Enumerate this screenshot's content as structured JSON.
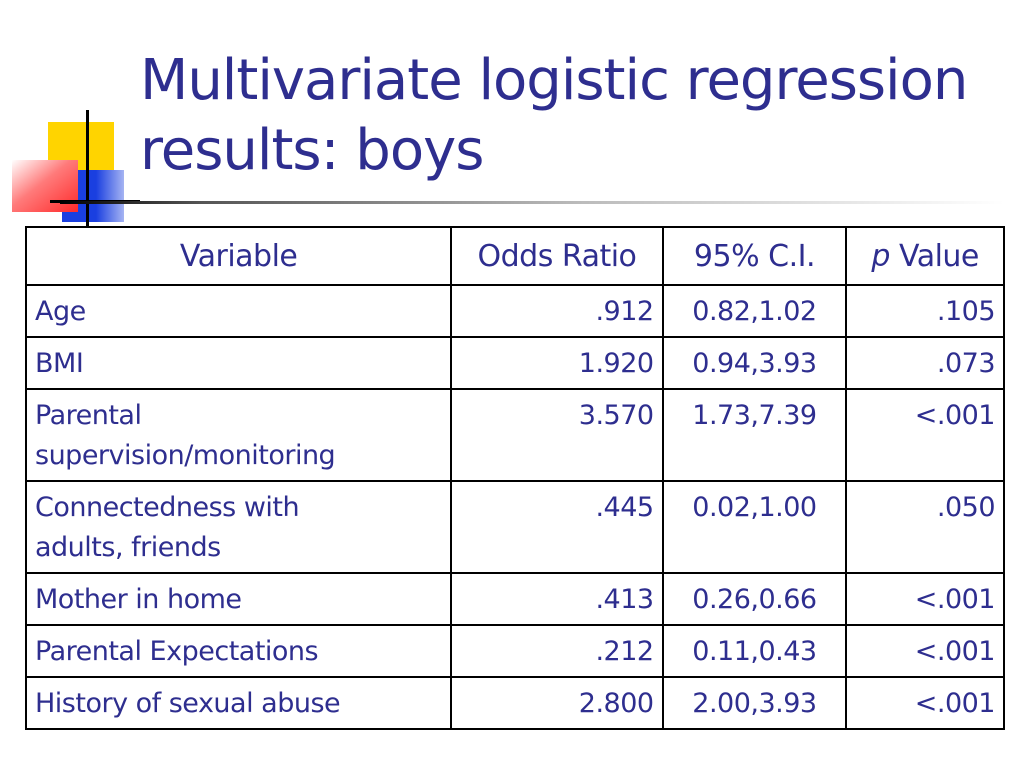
{
  "slide": {
    "title_line1": "Multivariate logistic regression",
    "title_line2": "results: boys"
  },
  "table": {
    "headers": {
      "variable": "Variable",
      "odds_ratio": "Odds Ratio",
      "ci": "95% C.I.",
      "p_italic": "p",
      "p_rest": " Value"
    },
    "rows": [
      {
        "variable_line1": "Age",
        "variable_line2": "",
        "odds_ratio": ".912",
        "ci": "0.82,1.02",
        "p_value": ".105"
      },
      {
        "variable_line1": "BMI",
        "variable_line2": "",
        "odds_ratio": "1.920",
        "ci": "0.94,3.93",
        "p_value": ".073"
      },
      {
        "variable_line1": "Parental",
        "variable_line2": "supervision/monitoring",
        "odds_ratio": "3.570",
        "ci": "1.73,7.39",
        "p_value": "<.001"
      },
      {
        "variable_line1": "Connectedness with",
        "variable_line2": "adults, friends",
        "odds_ratio": ".445",
        "ci": "0.02,1.00",
        "p_value": ".050"
      },
      {
        "variable_line1": "Mother in home",
        "variable_line2": "",
        "odds_ratio": ".413",
        "ci": "0.26,0.66",
        "p_value": "<.001"
      },
      {
        "variable_line1": "Parental Expectations",
        "variable_line2": "",
        "odds_ratio": ".212",
        "ci": "0.11,0.43",
        "p_value": "<.001"
      },
      {
        "variable_line1": "History of sexual abuse",
        "variable_line2": "",
        "odds_ratio": "2.800",
        "ci": "2.00,3.93",
        "p_value": "<.001"
      }
    ]
  }
}
